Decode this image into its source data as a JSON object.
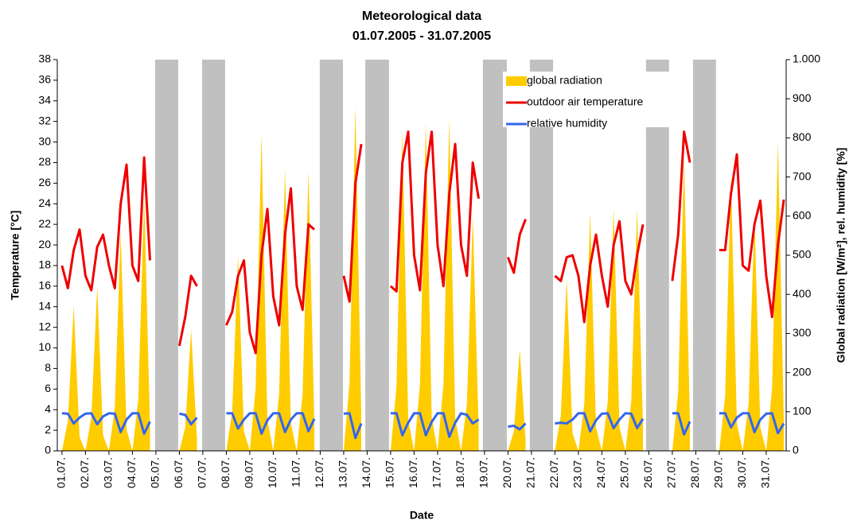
{
  "chart_data": {
    "type": "line",
    "title": "Meteorological data",
    "subtitle": "01.07.2005 - 31.07.2005",
    "x_label": "Date",
    "y_label": "Temperature [°C]",
    "y2_label": "Global radiation [W/m²],  rel. humidity [%]",
    "xlim": [
      0.8,
      31.85
    ],
    "xticks": [
      {
        "value": 1,
        "label": "01.07."
      },
      {
        "value": 2,
        "label": "02.07."
      },
      {
        "value": 3,
        "label": "03.07."
      },
      {
        "value": 4,
        "label": "04.07."
      },
      {
        "value": 5,
        "label": "05.07."
      },
      {
        "value": 6,
        "label": "06.07."
      },
      {
        "value": 7,
        "label": "07.07."
      },
      {
        "value": 8,
        "label": "08.07."
      },
      {
        "value": 9,
        "label": "09.07."
      },
      {
        "value": 10,
        "label": "10.07."
      },
      {
        "value": 11,
        "label": "11.07."
      },
      {
        "value": 12,
        "label": "12.07."
      },
      {
        "value": 13,
        "label": "13.07."
      },
      {
        "value": 14,
        "label": "14.07."
      },
      {
        "value": 15,
        "label": "15.07."
      },
      {
        "value": 16,
        "label": "16.07."
      },
      {
        "value": 17,
        "label": "17.07."
      },
      {
        "value": 18,
        "label": "18.07."
      },
      {
        "value": 19,
        "label": "19.07."
      },
      {
        "value": 20,
        "label": "20.07."
      },
      {
        "value": 21,
        "label": "21.07."
      },
      {
        "value": 22,
        "label": "22.07."
      },
      {
        "value": 23,
        "label": "23.07."
      },
      {
        "value": 24,
        "label": "24.07."
      },
      {
        "value": 25,
        "label": "25.07."
      },
      {
        "value": 26,
        "label": "26.07."
      },
      {
        "value": 27,
        "label": "27.07."
      },
      {
        "value": 28,
        "label": "28.07."
      },
      {
        "value": 29,
        "label": "29.07."
      },
      {
        "value": 30,
        "label": "30.07."
      },
      {
        "value": 31,
        "label": "31.07."
      }
    ],
    "ylim": [
      0,
      38
    ],
    "yticks": [
      0,
      2,
      4,
      6,
      8,
      10,
      12,
      14,
      16,
      18,
      20,
      22,
      24,
      26,
      28,
      30,
      32,
      34,
      36,
      38
    ],
    "y2lim": [
      0,
      1000
    ],
    "y2ticks": [
      0,
      100,
      200,
      300,
      400,
      500,
      600,
      700,
      800,
      900,
      {
        "value": 1000,
        "label": "1.000"
      }
    ],
    "grid": false,
    "legend": "upper right",
    "shade_color": "#c0c0c0",
    "shaded_x_ranges": [
      [
        4.97,
        5.95
      ],
      [
        6.97,
        7.95
      ],
      [
        11.98,
        12.97
      ],
      [
        13.92,
        14.93
      ],
      [
        18.93,
        19.95
      ],
      [
        20.93,
        21.92
      ],
      [
        25.88,
        26.86
      ],
      [
        27.88,
        28.86
      ]
    ],
    "x": [
      1,
      1.25,
      1.5,
      1.75,
      2,
      2.25,
      2.5,
      2.75,
      3,
      3.25,
      3.5,
      3.75,
      4,
      4.25,
      4.5,
      4.75,
      5,
      5.25,
      5.5,
      5.75,
      6,
      6.25,
      6.5,
      6.75,
      7,
      7.25,
      7.5,
      7.75,
      8,
      8.25,
      8.5,
      8.75,
      9,
      9.25,
      9.5,
      9.75,
      10,
      10.25,
      10.5,
      10.75,
      11,
      11.25,
      11.5,
      11.75,
      12,
      12.25,
      12.5,
      12.75,
      13,
      13.25,
      13.5,
      13.75,
      14,
      14.25,
      14.5,
      14.75,
      15,
      15.25,
      15.5,
      15.75,
      16,
      16.25,
      16.5,
      16.75,
      17,
      17.25,
      17.5,
      17.75,
      18,
      18.25,
      18.5,
      18.75,
      19,
      19.25,
      19.5,
      19.75,
      20,
      20.25,
      20.5,
      20.75,
      21,
      21.25,
      21.5,
      21.75,
      22,
      22.25,
      22.5,
      22.75,
      23,
      23.25,
      23.5,
      23.75,
      24,
      24.25,
      24.5,
      24.75,
      25,
      25.25,
      25.5,
      25.75,
      26,
      26.25,
      26.5,
      26.75,
      27,
      27.25,
      27.5,
      27.75,
      28,
      28.25,
      28.5,
      28.75,
      29,
      29.25,
      29.5,
      29.75,
      30,
      30.25,
      30.5,
      30.75,
      31,
      31.25,
      31.5,
      31.75
    ],
    "series": [
      {
        "name": "global radiation",
        "color": "#ffcc00",
        "type": "area",
        "axis": "y2",
        "values": [
          0,
          75,
          370,
          35,
          0,
          85,
          420,
          40,
          0,
          110,
          560,
          55,
          0,
          130,
          650,
          65,
          null,
          null,
          null,
          null,
          0,
          60,
          310,
          30,
          null,
          null,
          null,
          null,
          0,
          100,
          500,
          50,
          0,
          160,
          810,
          80,
          0,
          145,
          720,
          70,
          0,
          145,
          715,
          70,
          null,
          null,
          null,
          null,
          0,
          175,
          880,
          90,
          null,
          null,
          null,
          null,
          0,
          165,
          820,
          80,
          0,
          170,
          840,
          85,
          0,
          170,
          850,
          85,
          0,
          120,
          600,
          60,
          null,
          null,
          null,
          null,
          0,
          50,
          260,
          25,
          null,
          null,
          null,
          null,
          0,
          90,
          440,
          45,
          0,
          120,
          610,
          60,
          0,
          125,
          620,
          60,
          0,
          125,
          620,
          60,
          null,
          null,
          null,
          null,
          0,
          150,
          750,
          75,
          null,
          null,
          null,
          null,
          0,
          140,
          700,
          70,
          0,
          120,
          600,
          60,
          0,
          160,
          790,
          80
        ]
      },
      {
        "name": "outdoor air temperature",
        "color": "#ee0000",
        "type": "line",
        "values": [
          18,
          15.8,
          19.5,
          21.5,
          17,
          15.6,
          19.8,
          21,
          18,
          15.8,
          24,
          27.8,
          18,
          16.5,
          28.5,
          18.5,
          null,
          null,
          null,
          null,
          10.2,
          13,
          17,
          16,
          null,
          null,
          null,
          null,
          12.2,
          13.5,
          17,
          18.5,
          11.5,
          9.5,
          19,
          23.5,
          15,
          12.2,
          21,
          25.5,
          16,
          13.7,
          22,
          21.5,
          null,
          null,
          null,
          null,
          17,
          14.5,
          26,
          29.8,
          null,
          null,
          null,
          null,
          16,
          15.5,
          28,
          31,
          19,
          15.6,
          27,
          31,
          20,
          16,
          25,
          29.8,
          20,
          17,
          28,
          24.5,
          null,
          null,
          null,
          null,
          18.8,
          17.3,
          21,
          22.5,
          null,
          null,
          null,
          null,
          17,
          16.5,
          18.8,
          19,
          17,
          12.5,
          18,
          21,
          17,
          14,
          20,
          22.3,
          16.5,
          15.2,
          19,
          22,
          null,
          null,
          null,
          null,
          16.5,
          21,
          31,
          28,
          null,
          null,
          null,
          null,
          19.5,
          19.5,
          25,
          28.8,
          18,
          17.5,
          22,
          24.3,
          17,
          13,
          20,
          24.4
        ]
      },
      {
        "name": "relative humidity",
        "color": "#3366ee",
        "type": "line",
        "axis": "y2",
        "values": [
          96,
          95,
          70,
          85,
          95,
          96,
          68,
          88,
          96,
          95,
          48,
          80,
          96,
          96,
          44,
          75,
          null,
          null,
          null,
          null,
          95,
          92,
          68,
          85,
          null,
          null,
          null,
          null,
          96,
          96,
          57,
          80,
          96,
          96,
          44,
          78,
          96,
          96,
          48,
          80,
          96,
          96,
          50,
          82,
          null,
          null,
          null,
          null,
          95,
          96,
          33,
          70,
          null,
          null,
          null,
          null,
          96,
          96,
          40,
          72,
          96,
          96,
          40,
          74,
          96,
          96,
          36,
          72,
          96,
          92,
          70,
          80,
          null,
          null,
          null,
          null,
          62,
          64,
          55,
          70,
          null,
          null,
          null,
          null,
          70,
          72,
          70,
          80,
          96,
          96,
          50,
          78,
          95,
          96,
          58,
          80,
          96,
          95,
          58,
          82,
          null,
          null,
          null,
          null,
          96,
          96,
          42,
          75,
          null,
          null,
          null,
          null,
          96,
          96,
          60,
          85,
          96,
          96,
          48,
          80,
          95,
          96,
          45,
          70
        ]
      }
    ]
  }
}
